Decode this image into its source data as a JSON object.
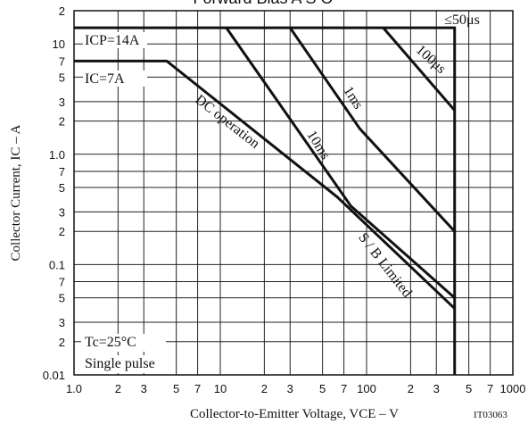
{
  "chart_data": {
    "type": "line",
    "title": "Forward Bias A S O",
    "x_label": "Collector-to-Emitter Voltage, VCE – V",
    "y_label": "Collector Current, IC – A",
    "code": "IT03063",
    "annotations": [
      "ICP=14A",
      "IC=7A",
      "S / B Limited",
      "Tc=25°C",
      "Single pulse"
    ],
    "xscale": "log",
    "yscale": "log",
    "grid": true,
    "color": "#111111",
    "xlim": [
      1,
      1000
    ],
    "ylim": [
      0.01,
      20
    ],
    "xticks": [
      {
        "value": 1,
        "label": "1.0"
      },
      2,
      3,
      5,
      7,
      10,
      {
        "value": 20,
        "label": "2"
      },
      {
        "value": 30,
        "label": "3"
      },
      {
        "value": 50,
        "label": "5"
      },
      {
        "value": 70,
        "label": "7"
      },
      100,
      {
        "value": 200,
        "label": "2"
      },
      {
        "value": 300,
        "label": "3"
      },
      {
        "value": 500,
        "label": "5"
      },
      {
        "value": 700,
        "label": "7"
      },
      1000
    ],
    "yticks": [
      0.01,
      {
        "value": 0.02,
        "label": "2"
      },
      {
        "value": 0.03,
        "label": "3"
      },
      {
        "value": 0.05,
        "label": "5"
      },
      {
        "value": 0.07,
        "label": "7"
      },
      0.1,
      {
        "value": 0.2,
        "label": "2"
      },
      {
        "value": 0.3,
        "label": "3"
      },
      {
        "value": 0.5,
        "label": "5"
      },
      {
        "value": 0.7,
        "label": "7"
      },
      {
        "value": 1,
        "label": "1.0"
      },
      2,
      3,
      5,
      7,
      10,
      {
        "value": 20,
        "label": "2"
      }
    ],
    "series": [
      {
        "name": "≤50μs",
        "x": [
          1,
          400,
          400
        ],
        "values": [
          14,
          14,
          0.01
        ]
      },
      {
        "name": "100μs",
        "x": [
          130,
          400
        ],
        "values": [
          14,
          2.5
        ]
      },
      {
        "name": "1ms",
        "x": [
          30,
          90,
          400
        ],
        "values": [
          14,
          1.7,
          0.2
        ]
      },
      {
        "name": "10ms",
        "x": [
          11,
          78,
          400
        ],
        "values": [
          14,
          0.34,
          0.05
        ]
      },
      {
        "name": "DC operation",
        "x": [
          1,
          4.3,
          63,
          400
        ],
        "values": [
          7,
          7,
          0.41,
          0.04
        ]
      }
    ]
  }
}
